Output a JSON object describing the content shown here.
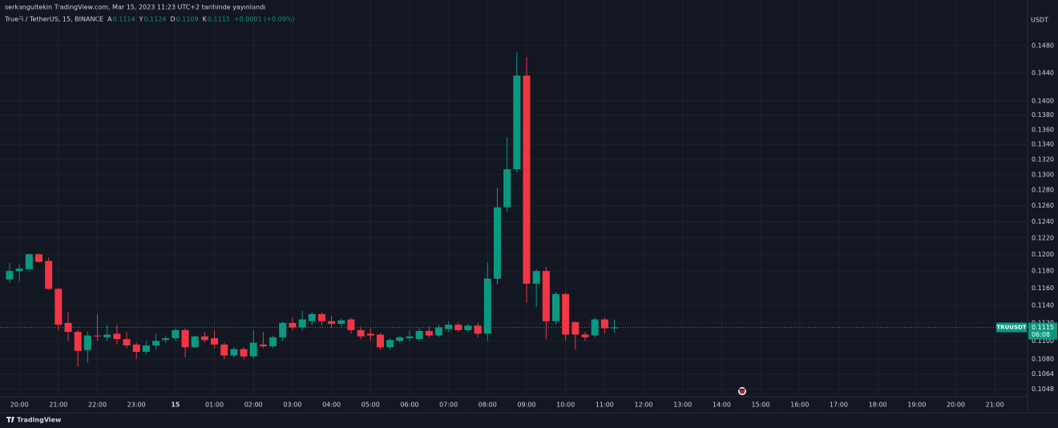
{
  "published": "serkangultekin TradingView.com, Mar 15, 2023 11:23 UTC+2 tarihinde yayınlandı",
  "brand": "TradingView",
  "chart_data": {
    "type": "candlestick",
    "title": "TrueFi / TetherUS, 15, BINANCE",
    "ohlc_labels": [
      "A",
      "Y",
      "D",
      "K"
    ],
    "change_label": "+0.0001 (+0.09%)",
    "currency": "USDT",
    "symbol": "TRUUSDT",
    "countdown": "06:08",
    "up_color": "#089981",
    "down_color": "#f23645",
    "log_scale": true,
    "grid": true,
    "x_labels": [
      "20:00",
      "21:00",
      "22:00",
      "23:00",
      "15",
      "01:00",
      "02:00",
      "03:00",
      "04:00",
      "05:00",
      "06:00",
      "07:00",
      "08:00",
      "09:00",
      "10:00",
      "11:00",
      "12:00",
      "13:00",
      "14:00",
      "15:00",
      "16:00",
      "17:00",
      "18:00",
      "19:00",
      "20:00",
      "21:00"
    ],
    "ylim": [
      0.104,
      0.1527
    ],
    "yticks": [
      {
        "value": 0.1048,
        "label": "0.1048"
      },
      {
        "value": 0.1064,
        "label": "0.1064"
      },
      {
        "value": 0.108,
        "label": "0.1080"
      },
      {
        "value": 0.11,
        "label": "0.1100"
      },
      {
        "value": 0.112,
        "label": "0.1120"
      },
      {
        "value": 0.114,
        "label": "0.1140"
      },
      {
        "value": 0.116,
        "label": "0.1160"
      },
      {
        "value": 0.118,
        "label": "0.1180"
      },
      {
        "value": 0.12,
        "label": "0.1200"
      },
      {
        "value": 0.122,
        "label": "0.1220"
      },
      {
        "value": 0.124,
        "label": "0.1240"
      },
      {
        "value": 0.126,
        "label": "0.1260"
      },
      {
        "value": 0.128,
        "label": "0.1280"
      },
      {
        "value": 0.13,
        "label": "0.1300"
      },
      {
        "value": 0.132,
        "label": "0.1320"
      },
      {
        "value": 0.134,
        "label": "0.1340"
      },
      {
        "value": 0.136,
        "label": "0.1360"
      },
      {
        "value": 0.138,
        "label": "0.1380"
      },
      {
        "value": 0.14,
        "label": "0.1400"
      },
      {
        "value": 0.144,
        "label": "0.1440"
      },
      {
        "value": 0.148,
        "label": "0.1480"
      }
    ],
    "open": [
      0.117,
      0.118,
      0.1182,
      0.12,
      0.1192,
      0.1159,
      0.112,
      0.111,
      0.109,
      0.1106,
      0.1104,
      0.1108,
      0.1102,
      0.1096,
      0.1088,
      0.1095,
      0.1101,
      0.1103,
      0.1112,
      0.1093,
      0.1105,
      0.1103,
      0.1096,
      0.1084,
      0.1091,
      0.1083,
      0.1096,
      0.1094,
      0.1104,
      0.112,
      0.1115,
      0.1122,
      0.113,
      0.1122,
      0.1119,
      0.1124,
      0.1112,
      0.1108,
      0.1107,
      0.1093,
      0.11,
      0.1103,
      0.1102,
      0.1111,
      0.1106,
      0.1113,
      0.1118,
      0.1112,
      0.1117,
      0.1108,
      0.1171,
      0.1258,
      0.1307,
      0.1436,
      0.1165,
      0.118,
      0.1122,
      0.1153,
      0.1121,
      0.1107,
      0.1106,
      0.1124,
      0.1114
    ],
    "high": [
      0.119,
      0.1188,
      0.1201,
      0.1201,
      0.1196,
      0.116,
      0.1132,
      0.1112,
      0.111,
      0.113,
      0.1118,
      0.1118,
      0.111,
      0.1098,
      0.11,
      0.1108,
      0.1106,
      0.1114,
      0.1114,
      0.1106,
      0.111,
      0.1112,
      0.1098,
      0.1093,
      0.1093,
      0.1112,
      0.111,
      0.1106,
      0.1122,
      0.1126,
      0.1134,
      0.1132,
      0.1132,
      0.1128,
      0.1125,
      0.1126,
      0.1116,
      0.1114,
      0.1109,
      0.1103,
      0.1106,
      0.1112,
      0.1114,
      0.1116,
      0.1118,
      0.1122,
      0.112,
      0.1119,
      0.112,
      0.119,
      0.1283,
      0.135,
      0.147,
      0.1463,
      0.1182,
      0.1185,
      0.1155,
      0.1155,
      0.1122,
      0.111,
      0.1126,
      0.1126,
      0.1124
    ],
    "low": [
      0.1166,
      0.1168,
      0.118,
      0.119,
      0.1158,
      0.1112,
      0.11,
      0.1072,
      0.1076,
      0.11,
      0.11,
      0.1096,
      0.1092,
      0.108,
      0.1085,
      0.109,
      0.1098,
      0.11,
      0.1082,
      0.1092,
      0.1098,
      0.1092,
      0.108,
      0.1082,
      0.108,
      0.1081,
      0.1092,
      0.1092,
      0.11,
      0.1112,
      0.1112,
      0.1118,
      0.1118,
      0.1114,
      0.1116,
      0.1108,
      0.1102,
      0.11,
      0.109,
      0.109,
      0.1098,
      0.11,
      0.11,
      0.1104,
      0.1104,
      0.111,
      0.111,
      0.111,
      0.1104,
      0.11,
      0.1164,
      0.1252,
      0.1303,
      0.1143,
      0.1138,
      0.1102,
      0.1118,
      0.11,
      0.109,
      0.11,
      0.1104,
      0.1108,
      0.1109
    ],
    "close": [
      0.118,
      0.1183,
      0.12,
      0.1191,
      0.1159,
      0.1118,
      0.111,
      0.1089,
      0.1106,
      0.1105,
      0.1107,
      0.1102,
      0.1095,
      0.1088,
      0.1095,
      0.11,
      0.1103,
      0.1112,
      0.1093,
      0.1105,
      0.1101,
      0.1096,
      0.1084,
      0.1091,
      0.1083,
      0.1098,
      0.1094,
      0.1104,
      0.112,
      0.1115,
      0.1124,
      0.113,
      0.1122,
      0.1119,
      0.1123,
      0.1112,
      0.1105,
      0.1106,
      0.1093,
      0.1101,
      0.1104,
      0.1105,
      0.1111,
      0.1106,
      0.1115,
      0.1118,
      0.1112,
      0.1117,
      0.1108,
      0.1171,
      0.1258,
      0.1307,
      0.1436,
      0.1165,
      0.118,
      0.1122,
      0.1153,
      0.1107,
      0.1107,
      0.1104,
      0.1124,
      0.1114,
      0.1115
    ]
  }
}
